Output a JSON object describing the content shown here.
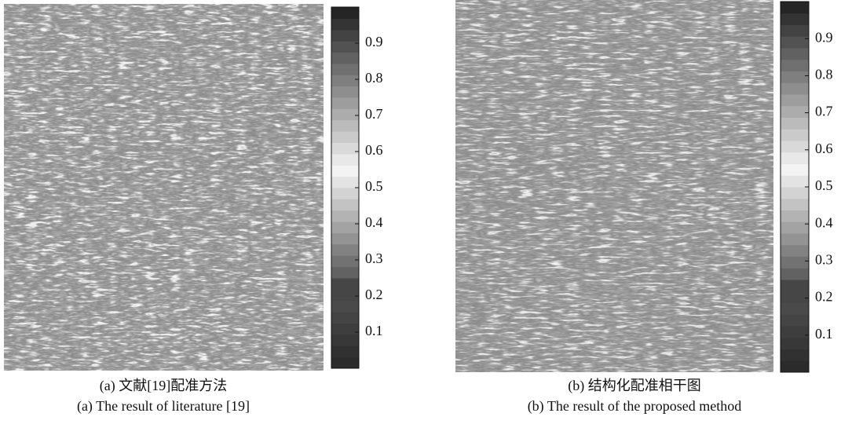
{
  "figures": [
    {
      "caption_zh": "(a) 文献[19]配准方法",
      "caption_en": "(a) The result of literature [19]",
      "colorbar": {
        "lim": [
          0,
          1
        ],
        "ticks": [
          0.1,
          0.2,
          0.3,
          0.4,
          0.5,
          0.6,
          0.7,
          0.8,
          0.9
        ]
      }
    },
    {
      "caption_zh": "(b) 结构化配准相干图",
      "caption_en": "(b) The result of the proposed method",
      "colorbar": {
        "lim": [
          0,
          1
        ],
        "ticks": [
          0.1,
          0.2,
          0.3,
          0.4,
          0.5,
          0.6,
          0.7,
          0.8,
          0.9
        ]
      }
    }
  ]
}
